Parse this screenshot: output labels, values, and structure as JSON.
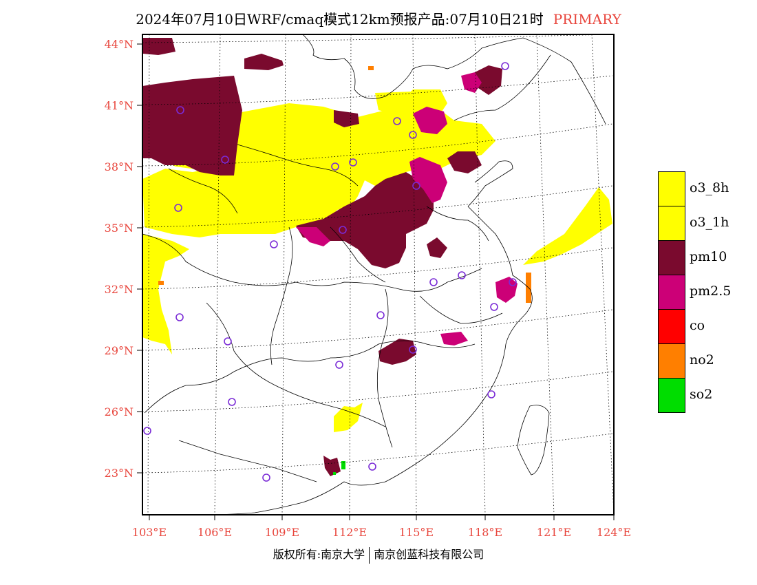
{
  "title": {
    "text": "2024年07月10日WRF/cmaq模式12km预报产品:07月10日21时",
    "tag": "PRIMARY"
  },
  "lat_labels": [
    "44°N",
    "41°N",
    "38°N",
    "35°N",
    "32°N",
    "29°N",
    "26°N",
    "23°N"
  ],
  "lon_labels": [
    "103°E",
    "106°E",
    "109°E",
    "112°E",
    "115°E",
    "118°E",
    "121°E",
    "124°E"
  ],
  "legend": [
    {
      "label": "o3_8h",
      "color": "#ffff00"
    },
    {
      "label": "o3_1h",
      "color": "#ffff00"
    },
    {
      "label": "pm10",
      "color": "#7a0a2e"
    },
    {
      "label": "pm2.5",
      "color": "#cc0077"
    },
    {
      "label": "co",
      "color": "#ff0000"
    },
    {
      "label": "no2",
      "color": "#ff7f00"
    },
    {
      "label": "so2",
      "color": "#00dd00"
    }
  ],
  "footer": {
    "left": "版权所有:南京大学",
    "right": "南京创蓝科技有限公司"
  }
}
